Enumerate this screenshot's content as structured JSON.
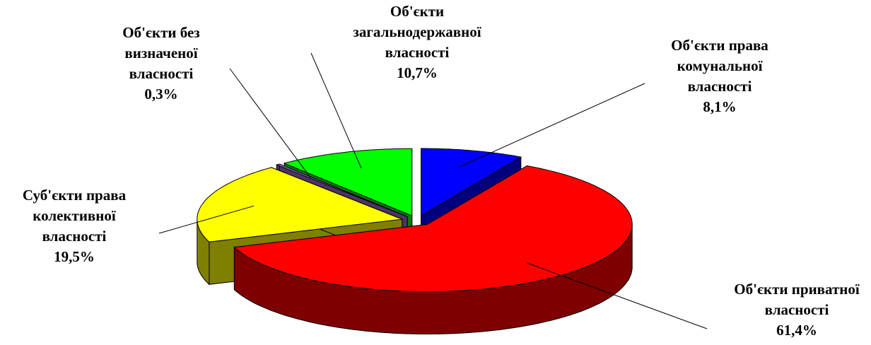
{
  "chart_data": {
    "type": "pie",
    "categories": [
      "Об'єкти права\nкомунальної\nвласності",
      "Об'єкти приватної\nвласності",
      "Суб'єкти права\nколективної\nвласності",
      "Об'єкти без\nвизначеної\nвласності",
      "Об'єкти\nзагальнодержавної\nвласності"
    ],
    "values": [
      8.1,
      61.4,
      19.5,
      0.3,
      10.7
    ],
    "value_labels": [
      "8,1%",
      "61,4%",
      "19,5%",
      "0,3%",
      "10,7%"
    ],
    "colors": [
      "#0000ff",
      "#ff0000",
      "#ffff00",
      "#9966cc",
      "#00ff00"
    ]
  }
}
